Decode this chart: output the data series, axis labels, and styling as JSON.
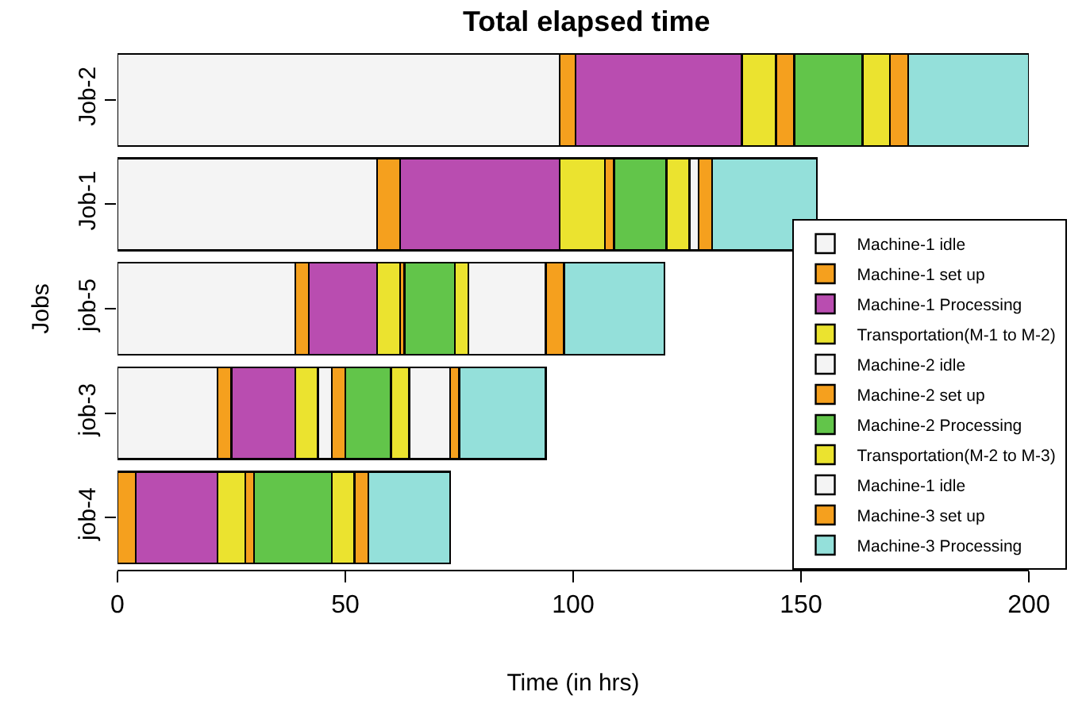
{
  "chart_data": {
    "type": "bar",
    "orientation": "horizontal",
    "stacked": true,
    "title": "Total elapsed time",
    "xlabel": "Time (in hrs)",
    "ylabel": "Jobs",
    "categories": [
      "Job-2",
      "Job-1",
      "job-5",
      "job-3",
      "job-4"
    ],
    "series": [
      {
        "name": "Machine-1 idle",
        "color": "#f4f4f4",
        "values": [
          97,
          57,
          39,
          22,
          0
        ]
      },
      {
        "name": "Machine-1 set up",
        "color": "#f5a01e",
        "values": [
          3.5,
          5,
          3,
          3,
          4
        ]
      },
      {
        "name": "Machine-1 Processing",
        "color": "#b94db0",
        "values": [
          36.5,
          35,
          15,
          14,
          18
        ]
      },
      {
        "name": "Transportation(M-1 to M-2)",
        "color": "#ebe32f",
        "values": [
          7.5,
          10,
          5,
          5,
          6
        ]
      },
      {
        "name": "Machine-2 idle",
        "color": "#f4f4f4",
        "values": [
          0,
          0,
          0,
          3,
          0
        ]
      },
      {
        "name": "Machine-2 set up",
        "color": "#f5a01e",
        "values": [
          4,
          2,
          1,
          3,
          2
        ]
      },
      {
        "name": "Machine-2 Processing",
        "color": "#62c54a",
        "values": [
          15,
          11.5,
          11,
          10,
          17
        ]
      },
      {
        "name": "Transportation(M-2 to M-3)",
        "color": "#ebe32f",
        "values": [
          6,
          5,
          3,
          4,
          5
        ]
      },
      {
        "name": "Machine-1 idle",
        "color": "#f4f4f4",
        "values": [
          0,
          2,
          17,
          9,
          0
        ]
      },
      {
        "name": "Machine-3 set up",
        "color": "#f5a01e",
        "values": [
          4,
          3,
          4,
          2,
          3
        ]
      },
      {
        "name": "Machine-3 Processing",
        "color": "#94e0da",
        "values": [
          26.5,
          23,
          22,
          19,
          18
        ]
      }
    ],
    "xlim": [
      0,
      200
    ],
    "xticks": [
      0,
      50,
      100,
      150,
      200
    ],
    "grid": false,
    "legend": "bottom right"
  }
}
